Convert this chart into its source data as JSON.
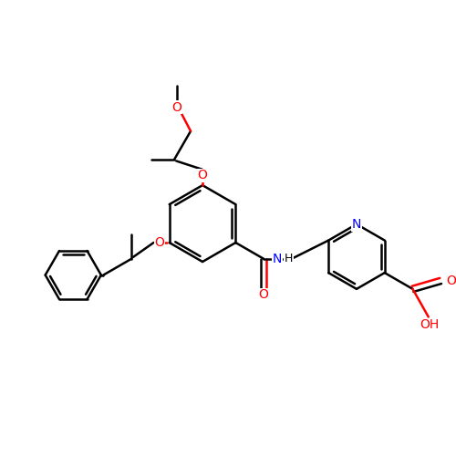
{
  "background_color": "#ffffff",
  "bond_color": "#000000",
  "atom_colors": {
    "O": "#ff0000",
    "N": "#0000ff"
  },
  "figsize": [
    5.0,
    5.0
  ],
  "dpi": 100,
  "xlim": [
    0,
    10
  ],
  "ylim": [
    0,
    10
  ],
  "lw": 1.8,
  "fontsize": 10
}
